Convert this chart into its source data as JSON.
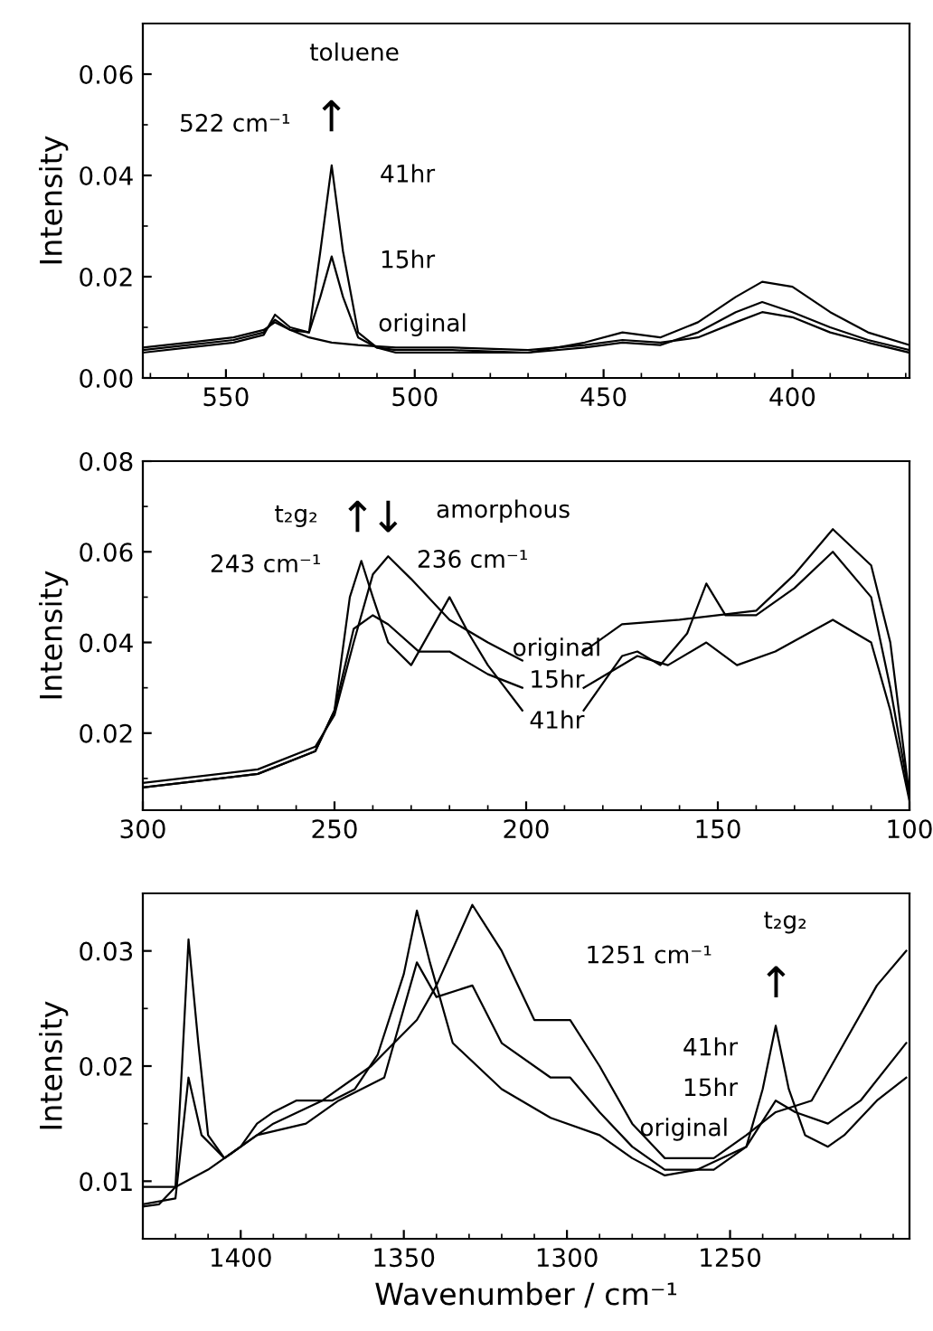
{
  "chart_data": [
    {
      "type": "line",
      "ylabel": "Intensity",
      "xlim": [
        572,
        369
      ],
      "xticks": [
        550,
        500,
        450,
        400
      ],
      "ylim": [
        0,
        0.07
      ],
      "yticks": [
        {
          "value": 0,
          "label": "0.00"
        },
        0.02,
        0.04,
        0.06
      ],
      "grid": false,
      "legend": false,
      "marker": "none",
      "line_style": "solid",
      "series": [
        {
          "color": "#000000",
          "x": [
            572,
            560,
            548,
            540,
            537,
            533,
            528,
            522,
            515,
            505,
            490,
            470,
            455,
            445,
            435,
            425,
            415,
            408,
            400,
            390,
            380,
            369
          ],
          "values": [
            0.006,
            0.007,
            0.008,
            0.0095,
            0.011,
            0.0095,
            0.008,
            0.007,
            0.0065,
            0.006,
            0.006,
            0.0055,
            0.0065,
            0.0075,
            0.007,
            0.008,
            0.011,
            0.013,
            0.012,
            0.009,
            0.007,
            0.005
          ]
        },
        {
          "color": "#000000",
          "x": [
            572,
            560,
            548,
            540,
            537,
            533,
            528,
            525,
            522,
            519,
            515,
            510,
            505,
            490,
            470,
            455,
            445,
            435,
            425,
            415,
            408,
            400,
            390,
            380,
            369
          ],
          "values": [
            0.0055,
            0.0065,
            0.0075,
            0.009,
            0.0115,
            0.0095,
            0.009,
            0.016,
            0.024,
            0.016,
            0.008,
            0.006,
            0.0055,
            0.0055,
            0.005,
            0.006,
            0.007,
            0.0065,
            0.009,
            0.013,
            0.015,
            0.013,
            0.01,
            0.0075,
            0.0055
          ]
        },
        {
          "color": "#000000",
          "x": [
            572,
            560,
            548,
            540,
            537,
            533,
            528,
            525,
            522,
            519,
            515,
            510,
            505,
            490,
            470,
            455,
            445,
            435,
            425,
            415,
            408,
            400,
            390,
            380,
            369
          ],
          "values": [
            0.005,
            0.006,
            0.007,
            0.0085,
            0.0125,
            0.01,
            0.009,
            0.025,
            0.042,
            0.025,
            0.009,
            0.006,
            0.005,
            0.005,
            0.005,
            0.007,
            0.009,
            0.008,
            0.011,
            0.016,
            0.019,
            0.018,
            0.013,
            0.009,
            0.0065
          ]
        }
      ],
      "annotations": [
        "toluene",
        "↑",
        "522 cm⁻¹",
        "41hr",
        "15hr",
        "original"
      ]
    },
    {
      "type": "line",
      "ylabel": "Intensity",
      "xlim": [
        300,
        100
      ],
      "xticks": [
        300,
        250,
        200,
        150,
        100
      ],
      "ylim": [
        0.003,
        0.08
      ],
      "yticks": [
        0.02,
        0.04,
        0.06,
        0.08
      ],
      "grid": false,
      "legend": false,
      "marker": "none",
      "line_style": "solid",
      "series": [
        {
          "color": "#000000",
          "x": [
            300,
            270,
            255,
            250,
            245,
            240,
            236,
            230,
            220,
            210,
            201,
            193,
            185,
            175,
            160,
            150,
            140,
            130,
            120,
            110,
            105,
            100
          ],
          "values": [
            0.009,
            0.012,
            0.017,
            0.024,
            0.04,
            0.055,
            0.059,
            0.054,
            0.045,
            0.04,
            0.036,
            null,
            0.038,
            0.044,
            0.045,
            0.046,
            0.047,
            0.055,
            0.065,
            0.057,
            0.04,
            0.006
          ]
        },
        {
          "color": "#000000",
          "x": [
            300,
            270,
            255,
            250,
            245,
            240,
            236,
            228,
            220,
            210,
            201,
            193,
            185,
            171,
            163,
            153,
            145,
            135,
            120,
            110,
            105,
            100
          ],
          "values": [
            0.008,
            0.011,
            0.016,
            0.025,
            0.043,
            0.046,
            0.044,
            0.038,
            0.038,
            0.033,
            0.03,
            null,
            0.03,
            0.037,
            0.035,
            0.04,
            0.035,
            0.038,
            0.045,
            0.04,
            0.025,
            0.005
          ]
        },
        {
          "color": "#000000",
          "x": [
            300,
            270,
            255,
            250,
            246,
            243,
            240,
            236,
            230,
            220,
            215,
            210,
            201,
            193,
            185,
            175,
            171,
            165,
            158,
            153,
            148,
            140,
            130,
            120,
            110,
            105,
            100
          ],
          "values": [
            0.008,
            0.011,
            0.016,
            0.025,
            0.05,
            0.058,
            0.05,
            0.04,
            0.035,
            0.05,
            0.042,
            0.035,
            0.025,
            null,
            0.025,
            0.037,
            0.038,
            0.035,
            0.042,
            0.053,
            0.046,
            0.046,
            0.052,
            0.06,
            0.05,
            0.03,
            0.006
          ]
        }
      ],
      "annotations": [
        "t₂g₂",
        "↑",
        "↓",
        "amorphous",
        "243 cm⁻¹",
        "236 cm⁻¹",
        "original",
        "15hr",
        "41hr"
      ]
    },
    {
      "type": "line",
      "xlabel": "Wavenumber / cm⁻¹",
      "ylabel": "Intensity",
      "xlim": [
        1430,
        1195
      ],
      "xticks": [
        1400,
        1350,
        1300,
        1250
      ],
      "ylim": [
        0.005,
        0.035
      ],
      "yticks": [
        0.01,
        0.02,
        0.03
      ],
      "grid": false,
      "legend": false,
      "marker": "none",
      "line_style": "solid",
      "series": [
        {
          "color": "#000000",
          "x": [
            1430,
            1420,
            1410,
            1400,
            1390,
            1375,
            1360,
            1346,
            1340,
            1329,
            1320,
            1310,
            1299,
            1290,
            1280,
            1270,
            1255,
            1245,
            1236,
            1225,
            1215,
            1205,
            1196
          ],
          "values": [
            0.0095,
            0.0095,
            0.011,
            0.013,
            0.015,
            0.017,
            0.02,
            0.024,
            0.027,
            0.034,
            0.03,
            0.024,
            0.024,
            0.02,
            0.015,
            0.012,
            0.012,
            0.014,
            0.016,
            0.017,
            0.022,
            0.027,
            0.03
          ]
        },
        {
          "color": "#000000",
          "x": [
            1430,
            1420,
            1416,
            1412,
            1405,
            1395,
            1380,
            1370,
            1356,
            1346,
            1340,
            1329,
            1320,
            1305,
            1299,
            1290,
            1280,
            1270,
            1255,
            1245,
            1236,
            1230,
            1220,
            1210,
            1196
          ],
          "values": [
            0.008,
            0.0085,
            0.019,
            0.014,
            0.012,
            0.014,
            0.015,
            0.017,
            0.019,
            0.029,
            0.026,
            0.027,
            0.022,
            0.019,
            0.019,
            0.016,
            0.013,
            0.011,
            0.011,
            0.013,
            0.017,
            0.016,
            0.015,
            0.017,
            0.022
          ]
        },
        {
          "color": "#000000",
          "x": [
            1430,
            1425,
            1420,
            1418,
            1416,
            1413,
            1410,
            1405,
            1400,
            1395,
            1390,
            1383,
            1372,
            1365,
            1358,
            1350,
            1346,
            1342,
            1335,
            1320,
            1305,
            1290,
            1280,
            1270,
            1260,
            1245,
            1240,
            1236,
            1232,
            1227,
            1220,
            1215,
            1205,
            1196
          ],
          "values": [
            0.0078,
            0.008,
            0.0095,
            0.02,
            0.031,
            0.022,
            0.014,
            0.012,
            0.013,
            0.015,
            0.016,
            0.017,
            0.017,
            0.018,
            0.021,
            0.028,
            0.0335,
            0.029,
            0.022,
            0.018,
            0.0155,
            0.014,
            0.012,
            0.0105,
            0.011,
            0.013,
            0.018,
            0.0235,
            0.018,
            0.014,
            0.013,
            0.014,
            0.017,
            0.019
          ]
        }
      ],
      "annotations": [
        "t₂g₂",
        "↑",
        "1251 cm⁻¹",
        "41hr",
        "15hr",
        "original"
      ]
    }
  ]
}
